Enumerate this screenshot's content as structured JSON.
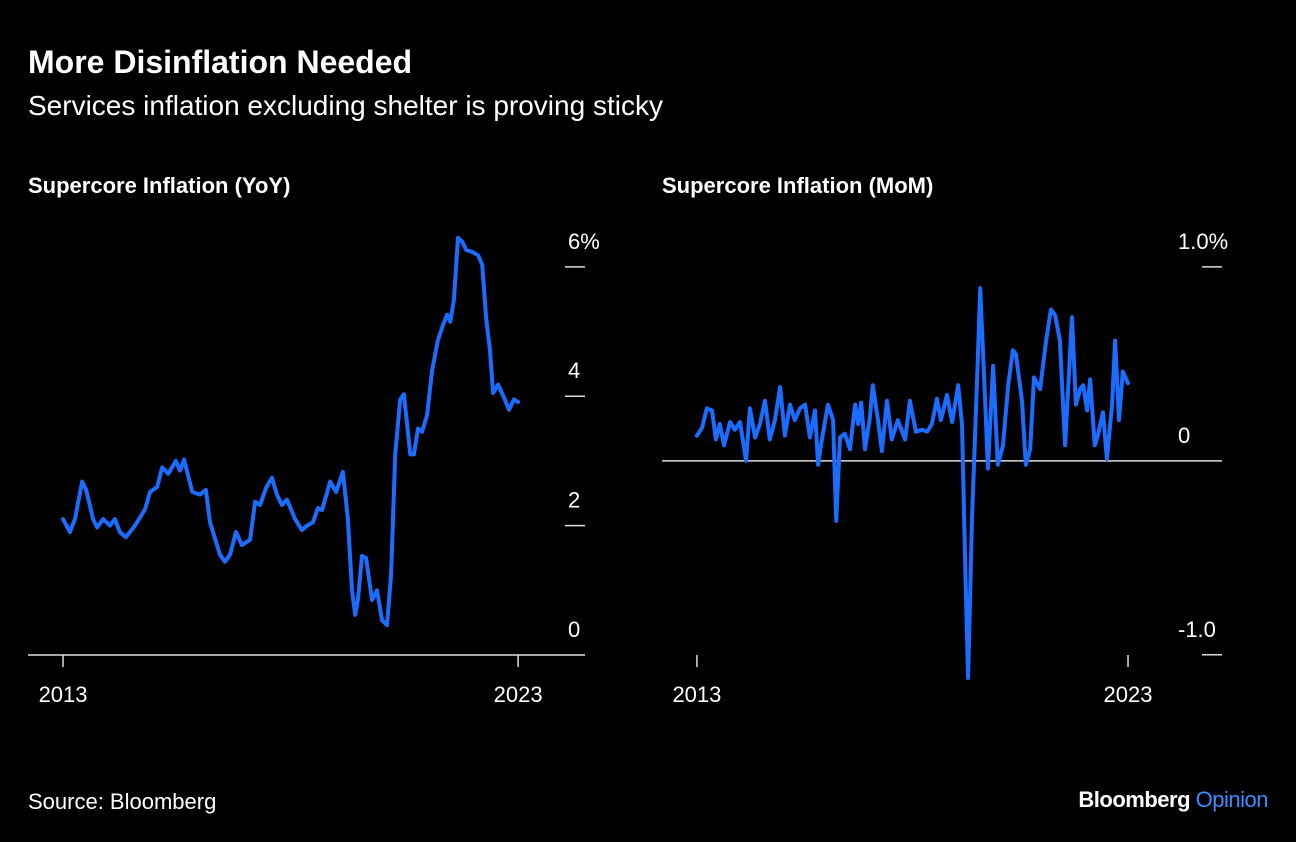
{
  "title": "More Disinflation Needed",
  "subtitle": "Services inflation excluding shelter is proving sticky",
  "source": "Source: Bloomberg",
  "brand": [
    "Bloomberg",
    "Opinion"
  ],
  "chart_data": [
    {
      "type": "line",
      "title": "Supercore Inflation (YoY)",
      "color": "#1a6dff",
      "xlim": [
        2012.23,
        2024.47
      ],
      "xticks": [
        2013,
        2023
      ],
      "ylim": [
        0,
        6.6
      ],
      "yticks": [
        {
          "value": 6,
          "label": "6%"
        },
        4,
        2,
        0
      ],
      "x": [
        2013.0,
        2013.15,
        2013.26,
        2013.42,
        2013.51,
        2013.66,
        2013.75,
        2013.88,
        2014.03,
        2014.14,
        2014.25,
        2014.38,
        2014.58,
        2014.8,
        2014.91,
        2015.07,
        2015.18,
        2015.31,
        2015.48,
        2015.57,
        2015.66,
        2015.84,
        2016.01,
        2016.14,
        2016.23,
        2016.45,
        2016.56,
        2016.67,
        2016.8,
        2016.93,
        2017.11,
        2017.22,
        2017.33,
        2017.46,
        2017.59,
        2017.7,
        2017.81,
        2017.92,
        2018.1,
        2018.25,
        2018.36,
        2018.49,
        2018.6,
        2018.69,
        2018.87,
        2019.0,
        2019.15,
        2019.26,
        2019.35,
        2019.42,
        2019.48,
        2019.57,
        2019.66,
        2019.79,
        2019.9,
        2020.01,
        2020.12,
        2020.21,
        2020.3,
        2020.41,
        2020.49,
        2020.63,
        2020.71,
        2020.8,
        2020.89,
        2021.0,
        2021.11,
        2021.24,
        2021.35,
        2021.44,
        2021.51,
        2021.59,
        2021.68,
        2021.77,
        2021.86,
        2021.99,
        2022.12,
        2022.21,
        2022.3,
        2022.38,
        2022.45,
        2022.56,
        2022.69,
        2022.8,
        2022.91,
        2023.0
      ],
      "values": [
        2.1,
        1.9,
        2.1,
        2.68,
        2.55,
        2.1,
        1.97,
        2.1,
        2.0,
        2.1,
        1.9,
        1.82,
        2.0,
        2.25,
        2.52,
        2.6,
        2.9,
        2.8,
        3.0,
        2.85,
        3.02,
        2.52,
        2.48,
        2.55,
        2.05,
        1.55,
        1.44,
        1.55,
        1.9,
        1.7,
        1.78,
        2.37,
        2.32,
        2.58,
        2.74,
        2.48,
        2.32,
        2.4,
        2.1,
        1.93,
        2.0,
        2.05,
        2.27,
        2.24,
        2.68,
        2.52,
        2.83,
        2.1,
        1.0,
        0.62,
        0.85,
        1.53,
        1.5,
        0.85,
        1.0,
        0.54,
        0.46,
        1.24,
        3.1,
        3.95,
        4.03,
        3.1,
        3.1,
        3.5,
        3.45,
        3.71,
        4.4,
        4.87,
        5.1,
        5.26,
        5.15,
        5.49,
        6.45,
        6.39,
        6.26,
        6.23,
        6.18,
        6.03,
        5.18,
        4.72,
        4.05,
        4.18,
        3.98,
        3.79,
        3.95,
        3.91
      ]
    },
    {
      "type": "line",
      "title": "Supercore Inflation (MoM)",
      "color": "#1a6dff",
      "xlim": [
        2012.19,
        2025.18
      ],
      "xticks": [
        2013,
        2023
      ],
      "ylim": [
        -1.13,
        1.19
      ],
      "yticks": [
        {
          "value": 1,
          "label": "1.0%"
        },
        0,
        {
          "value": -1,
          "label": "-1.0"
        }
      ],
      "x": [
        2013.0,
        2013.12,
        2013.23,
        2013.35,
        2013.44,
        2013.53,
        2013.63,
        2013.77,
        2013.88,
        2014.0,
        2014.14,
        2014.23,
        2014.35,
        2014.46,
        2014.58,
        2014.69,
        2014.81,
        2014.93,
        2015.04,
        2015.16,
        2015.27,
        2015.39,
        2015.51,
        2015.62,
        2015.74,
        2015.81,
        2015.9,
        2016.04,
        2016.16,
        2016.23,
        2016.32,
        2016.43,
        2016.55,
        2016.67,
        2016.74,
        2016.81,
        2016.9,
        2017.01,
        2017.08,
        2017.2,
        2017.29,
        2017.41,
        2017.52,
        2017.66,
        2017.83,
        2017.94,
        2018.08,
        2018.22,
        2018.34,
        2018.45,
        2018.57,
        2018.66,
        2018.8,
        2018.92,
        2019.06,
        2019.15,
        2019.22,
        2019.29,
        2019.38,
        2019.5,
        2019.57,
        2019.68,
        2019.75,
        2019.87,
        2019.98,
        2020.1,
        2020.22,
        2020.33,
        2020.4,
        2020.54,
        2020.63,
        2020.73,
        2020.82,
        2020.96,
        2021.1,
        2021.21,
        2021.31,
        2021.42,
        2021.54,
        2021.7,
        2021.79,
        2021.89,
        2021.96,
        2022.05,
        2022.12,
        2022.23,
        2022.3,
        2022.42,
        2022.51,
        2022.63,
        2022.7,
        2022.79,
        2022.88,
        2023.0
      ],
      "values": [
        0.13,
        0.17,
        0.27,
        0.26,
        0.11,
        0.19,
        0.08,
        0.2,
        0.16,
        0.2,
        0,
        0.27,
        0.12,
        0.19,
        0.31,
        0.11,
        0.21,
        0.38,
        0.13,
        0.29,
        0.21,
        0.27,
        0.29,
        0.12,
        0.26,
        -0.02,
        0.11,
        0.29,
        0.21,
        -0.31,
        0.12,
        0.14,
        0.06,
        0.29,
        0.19,
        0.3,
        0.06,
        0.22,
        0.39,
        0.21,
        0.05,
        0.31,
        0.11,
        0.21,
        0.11,
        0.31,
        0.15,
        0.16,
        0.15,
        0.19,
        0.32,
        0.21,
        0.34,
        0.2,
        0.39,
        0.19,
        -0.51,
        -1.12,
        -0.3,
        0.42,
        0.89,
        0.34,
        -0.04,
        0.49,
        -0.02,
        0.08,
        0.39,
        0.57,
        0.55,
        0.31,
        -0.02,
        0.06,
        0.43,
        0.37,
        0.62,
        0.78,
        0.75,
        0.62,
        0.08,
        0.74,
        0.29,
        0.37,
        0.39,
        0.26,
        0.42,
        0.08,
        0.13,
        0.25,
        0.01,
        0.29,
        0.62,
        0.21,
        0.46,
        0.4
      ]
    }
  ]
}
